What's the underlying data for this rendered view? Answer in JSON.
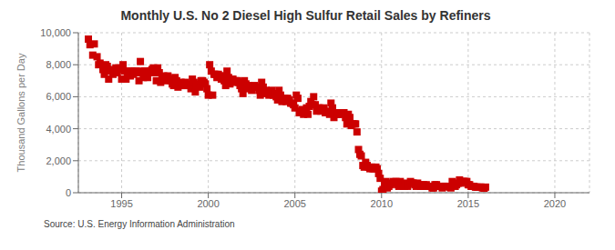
{
  "chart_data": {
    "type": "scatter",
    "title": "Monthly U.S. No 2 Diesel High Sulfur Retail Sales by Refiners",
    "ylabel": "Thousand Gallons per Day",
    "source": "Source: U.S. Energy Information Administration",
    "color": "#cc0000",
    "marker": "square",
    "grid": true,
    "xlim": [
      1992.5,
      2022.0
    ],
    "ylim": [
      0,
      10000
    ],
    "xticks": [
      1995,
      2000,
      2005,
      2010,
      2015,
      2020
    ],
    "yticks": [
      0,
      {
        "value": 2000,
        "label": "2,000"
      },
      {
        "value": 4000,
        "label": "4,000"
      },
      {
        "value": 6000,
        "label": "6,000"
      },
      {
        "value": 8000,
        "label": "8,000"
      },
      {
        "value": 10000,
        "label": "10,000"
      }
    ],
    "x": [
      1993.08,
      1993.17,
      1993.33,
      1993.42,
      1993.58,
      1993.67,
      1993.75,
      1993.92,
      1994.0,
      1994.08,
      1994.17,
      1994.25,
      1994.33,
      1994.42,
      1994.5,
      1994.58,
      1994.67,
      1994.75,
      1994.83,
      1994.92,
      1995.0,
      1995.08,
      1995.17,
      1995.25,
      1995.33,
      1995.42,
      1995.5,
      1995.58,
      1995.67,
      1995.75,
      1995.83,
      1995.92,
      1996.0,
      1996.08,
      1996.17,
      1996.25,
      1996.33,
      1996.42,
      1996.5,
      1996.58,
      1996.67,
      1996.75,
      1996.83,
      1996.92,
      1997.0,
      1997.08,
      1997.17,
      1997.25,
      1997.33,
      1997.42,
      1997.5,
      1997.58,
      1997.67,
      1997.75,
      1997.83,
      1997.92,
      1998.0,
      1998.08,
      1998.17,
      1998.25,
      1998.33,
      1998.42,
      1998.5,
      1998.58,
      1998.67,
      1998.75,
      1998.83,
      1998.92,
      1999.0,
      1999.08,
      1999.17,
      1999.25,
      1999.33,
      1999.42,
      1999.5,
      1999.58,
      1999.67,
      1999.75,
      1999.83,
      1999.92,
      2000.0,
      2000.08,
      2000.17,
      2000.25,
      2000.33,
      2000.42,
      2000.5,
      2000.58,
      2000.67,
      2000.75,
      2000.83,
      2000.92,
      2001.0,
      2001.08,
      2001.17,
      2001.25,
      2001.33,
      2001.42,
      2001.5,
      2001.58,
      2001.67,
      2001.75,
      2001.83,
      2001.92,
      2002.0,
      2002.08,
      2002.17,
      2002.25,
      2002.33,
      2002.42,
      2002.5,
      2002.58,
      2002.67,
      2002.75,
      2002.83,
      2002.92,
      2003.0,
      2003.08,
      2003.17,
      2003.25,
      2003.33,
      2003.42,
      2003.5,
      2003.58,
      2003.67,
      2003.75,
      2003.83,
      2003.92,
      2004.0,
      2004.08,
      2004.17,
      2004.25,
      2004.33,
      2004.42,
      2004.5,
      2004.58,
      2004.67,
      2004.75,
      2004.83,
      2004.92,
      2005.0,
      2005.08,
      2005.17,
      2005.25,
      2005.33,
      2005.42,
      2005.5,
      2005.58,
      2005.67,
      2005.75,
      2005.83,
      2005.92,
      2006.0,
      2006.08,
      2006.17,
      2006.25,
      2006.33,
      2006.42,
      2006.5,
      2006.58,
      2006.67,
      2006.75,
      2006.83,
      2006.92,
      2007.0,
      2007.08,
      2007.17,
      2007.25,
      2007.33,
      2007.42,
      2007.5,
      2007.58,
      2007.67,
      2007.75,
      2007.83,
      2007.92,
      2008.0,
      2008.08,
      2008.17,
      2008.25,
      2008.33,
      2008.42,
      2008.5,
      2008.58,
      2008.67,
      2008.75,
      2008.83,
      2008.92,
      2009.0,
      2009.08,
      2009.17,
      2009.25,
      2009.33,
      2009.42,
      2009.5,
      2009.58,
      2009.67,
      2009.75,
      2009.83,
      2009.92,
      2010.0,
      2010.08,
      2010.17,
      2010.25,
      2010.33,
      2010.42,
      2010.5,
      2010.58,
      2010.67,
      2010.75,
      2010.83,
      2010.92,
      2011.0,
      2011.08,
      2011.17,
      2011.25,
      2011.33,
      2011.42,
      2011.5,
      2011.58,
      2011.67,
      2011.75,
      2011.83,
      2011.92,
      2012.0,
      2012.08,
      2012.17,
      2012.25,
      2012.33,
      2012.42,
      2012.5,
      2012.58,
      2012.67,
      2012.75,
      2012.83,
      2012.92,
      2013.0,
      2013.08,
      2013.17,
      2013.25,
      2013.33,
      2013.42,
      2013.5,
      2013.58,
      2013.67,
      2013.75,
      2013.83,
      2013.92,
      2014.0,
      2014.08,
      2014.17,
      2014.25,
      2014.33,
      2014.42,
      2014.5,
      2014.58,
      2014.67,
      2014.75,
      2014.83,
      2014.92,
      2015.0,
      2015.08,
      2015.17,
      2015.25,
      2015.33,
      2015.42,
      2015.5,
      2015.58,
      2015.67,
      2015.75,
      2015.83,
      2015.92,
      2016.0
    ],
    "values": [
      9600,
      9250,
      8600,
      9300,
      8500,
      8000,
      8100,
      7700,
      7400,
      8000,
      7900,
      7100,
      7600,
      7700,
      7400,
      7600,
      7800,
      7500,
      7800,
      7700,
      7100,
      8000,
      7600,
      7100,
      7500,
      7600,
      7300,
      7600,
      7400,
      7600,
      7600,
      7500,
      7000,
      8200,
      7600,
      7200,
      7600,
      7500,
      7200,
      7600,
      7600,
      7700,
      7800,
      7500,
      7000,
      7800,
      7500,
      6900,
      7200,
      7300,
      7000,
      7200,
      7300,
      7100,
      7000,
      6800,
      6700,
      7200,
      7000,
      6600,
      6700,
      6900,
      6700,
      6800,
      6900,
      6700,
      6800,
      6700,
      6500,
      7100,
      6900,
      6300,
      6700,
      6800,
      6600,
      7000,
      7000,
      6900,
      6800,
      6500,
      6100,
      8000,
      7600,
      6100,
      7400,
      7400,
      7200,
      7400,
      7300,
      7100,
      7300,
      7000,
      6700,
      7600,
      7200,
      6800,
      7100,
      7100,
      6900,
      7000,
      7000,
      6900,
      6700,
      6500,
      6200,
      7000,
      6800,
      6500,
      6700,
      6600,
      6400,
      6600,
      6700,
      6600,
      6600,
      6400,
      6100,
      6900,
      6600,
      6200,
      6400,
      6300,
      6100,
      6300,
      6400,
      6100,
      6200,
      6000,
      5800,
      6400,
      6100,
      5700,
      5900,
      5900,
      5700,
      5900,
      5800,
      5600,
      5600,
      5500,
      5300,
      6100,
      5900,
      5000,
      5100,
      5200,
      4900,
      5000,
      5300,
      4900,
      5400,
      5700,
      5500,
      6000,
      5500,
      5100,
      5300,
      5300,
      5100,
      5200,
      5300,
      5000,
      5100,
      5000,
      4900,
      5600,
      5300,
      4700,
      4900,
      5000,
      4900,
      4900,
      5000,
      5000,
      5000,
      4700,
      4300,
      4900,
      4700,
      4200,
      4300,
      4300,
      4300,
      3800,
      2700,
      2400,
      2300,
      1700,
      1600,
      1900,
      1700,
      1600,
      1500,
      1600,
      1500,
      1500,
      1600,
      1500,
      1200,
      900,
      100,
      200,
      500,
      700,
      300,
      400,
      500,
      600,
      700,
      600,
      700,
      500,
      400,
      700,
      600,
      400,
      400,
      500,
      400,
      600,
      700,
      600,
      600,
      500,
      400,
      600,
      500,
      400,
      400,
      500,
      400,
      500,
      400,
      400,
      400,
      300,
      300,
      500,
      500,
      400,
      400,
      400,
      300,
      400,
      400,
      400,
      400,
      350,
      300,
      700,
      500,
      400,
      500,
      600,
      800,
      600,
      700,
      700,
      700,
      700,
      500,
      500,
      400,
      400,
      400,
      350,
      350,
      350,
      350,
      350,
      300,
      280,
      350
    ]
  }
}
